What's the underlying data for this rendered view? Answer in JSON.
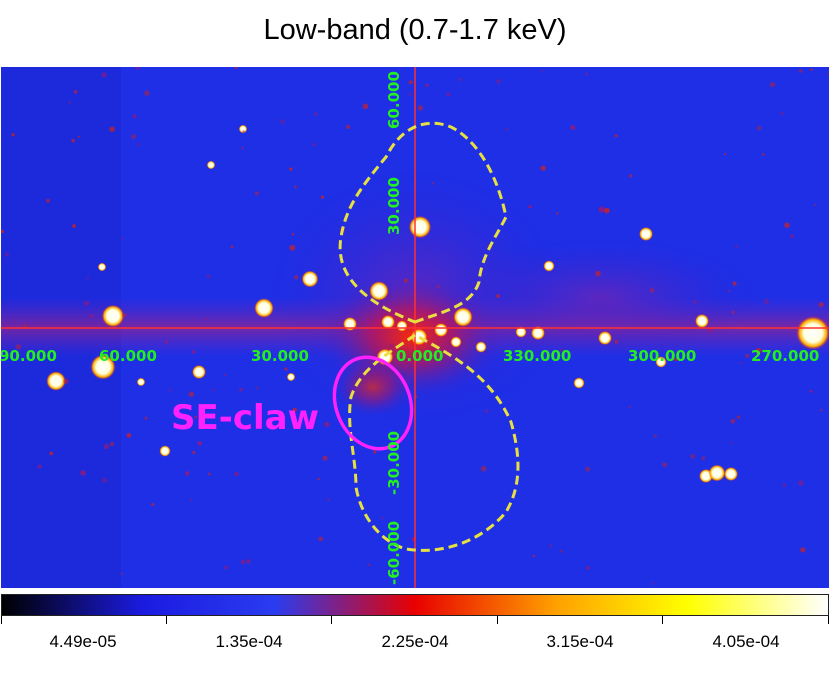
{
  "title": "Low-band (0.7-1.7 keV)",
  "map": {
    "x_axis_labels": [
      "90.000",
      "60.000",
      "30.000",
      "0.000",
      "330.000",
      "300.000",
      "270.000"
    ],
    "y_axis_labels": [
      "60.000",
      "30.000",
      "-30.000",
      "-60.000"
    ],
    "axis_color": "#ff3030",
    "label_color": "#22ee22",
    "background_color": "#1e2fe6",
    "contour_color": "#e8e040",
    "region": {
      "label": "SE-claw",
      "color": "#ff22ff"
    }
  },
  "colorbar": {
    "colors": [
      "#000000",
      "#1b1be0",
      "#2a3cf0",
      "#e80000",
      "#ffa000",
      "#ffff00",
      "#ffffff"
    ],
    "tick_labels": [
      "4.49e-05",
      "1.35e-04",
      "2.25e-04",
      "3.15e-04",
      "4.05e-04"
    ]
  }
}
